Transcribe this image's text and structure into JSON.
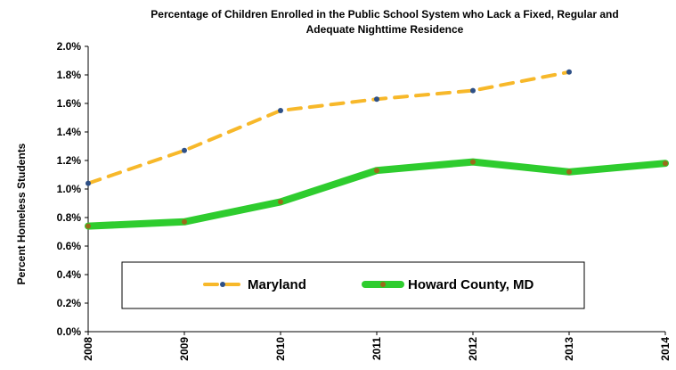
{
  "chart_data": {
    "type": "line",
    "title_line1": "Percentage of Children Enrolled in the Public School System who Lack a Fixed, Regular and",
    "title_line2": "Adequate Nighttime Residence",
    "ylabel": "Percent Homeless Students",
    "xlabel": "",
    "x": [
      "2008",
      "2009",
      "2010",
      "2011",
      "2012",
      "2013",
      "2014"
    ],
    "yticks": [
      "0.0%",
      "0.2%",
      "0.4%",
      "0.6%",
      "0.8%",
      "1.0%",
      "1.2%",
      "1.4%",
      "1.6%",
      "1.8%",
      "2.0%"
    ],
    "ylim": [
      0,
      2.0
    ],
    "grid": false,
    "legend_position": "bottom-center",
    "series": [
      {
        "name": "Maryland",
        "color": "#f7b82a",
        "marker_color": "#2e5087",
        "style": "dashed",
        "values": [
          1.04,
          1.27,
          1.55,
          1.63,
          1.69,
          1.82,
          null
        ]
      },
      {
        "name": "Howard County, MD",
        "color": "#2ecc2e",
        "marker_color": "#9a6a1a",
        "style": "solid",
        "values": [
          0.74,
          0.77,
          0.91,
          1.13,
          1.19,
          1.12,
          1.18
        ]
      }
    ]
  }
}
